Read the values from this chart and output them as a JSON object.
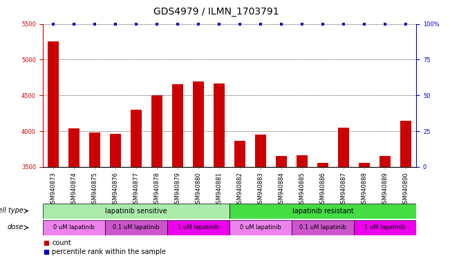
{
  "title": "GDS4979 / ILMN_1703791",
  "samples": [
    "GSM940873",
    "GSM940874",
    "GSM940875",
    "GSM940876",
    "GSM940877",
    "GSM940878",
    "GSM940879",
    "GSM940880",
    "GSM940881",
    "GSM940882",
    "GSM940883",
    "GSM940884",
    "GSM940885",
    "GSM940886",
    "GSM940887",
    "GSM940888",
    "GSM940889",
    "GSM940890"
  ],
  "counts": [
    5250,
    4040,
    3985,
    3960,
    4300,
    4500,
    4660,
    4700,
    4670,
    3870,
    3950,
    3650,
    3660,
    3560,
    4045,
    3555,
    3650,
    4145
  ],
  "bar_color": "#cc0000",
  "percentile_color": "#0000cc",
  "ylim_left": [
    3500,
    5500
  ],
  "ylim_right": [
    0,
    100
  ],
  "yticks_left": [
    3500,
    4000,
    4500,
    5000,
    5500
  ],
  "yticks_right": [
    0,
    25,
    50,
    75,
    100
  ],
  "ytick_labels_right": [
    "0",
    "25",
    "50",
    "75",
    "100%"
  ],
  "cell_type_defs": [
    {
      "label": "lapatinib sensitive",
      "start": 0,
      "end": 9,
      "color": "#aaeaaa"
    },
    {
      "label": "lapatinib resistant",
      "start": 9,
      "end": 18,
      "color": "#44dd44"
    }
  ],
  "dose_defs": [
    {
      "label": "0 uM lapatinib",
      "start": 0,
      "end": 3,
      "color": "#ee82ee"
    },
    {
      "label": "0.1 uM lapatinib",
      "start": 3,
      "end": 6,
      "color": "#cc55cc"
    },
    {
      "label": "1 uM lapatinib",
      "start": 6,
      "end": 9,
      "color": "#ee00ee"
    },
    {
      "label": "0 uM lapatinib",
      "start": 9,
      "end": 12,
      "color": "#ee82ee"
    },
    {
      "label": "0.1 uM lapatinib",
      "start": 12,
      "end": 15,
      "color": "#cc55cc"
    },
    {
      "label": "1 uM lapatinib",
      "start": 15,
      "end": 18,
      "color": "#ee00ee"
    }
  ],
  "legend_count_color": "#cc0000",
  "legend_percentile_color": "#0000cc",
  "title_fontsize": 10,
  "tick_fontsize": 6,
  "annot_fontsize": 7,
  "bar_width": 0.55
}
